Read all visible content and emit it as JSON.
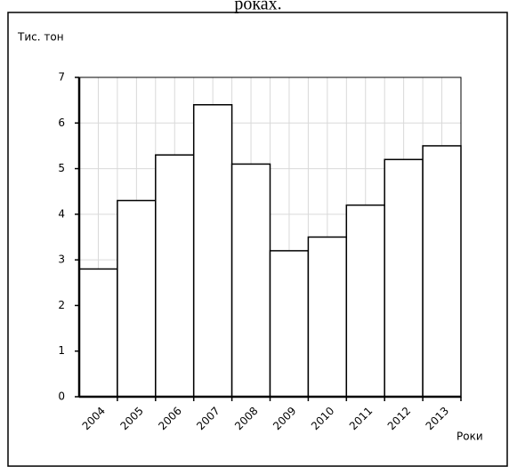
{
  "chart_data": {
    "type": "bar",
    "title": "роках.",
    "y_label": "Тис. тон",
    "x_label": "Роки",
    "categories": [
      "2004",
      "2005",
      "2006",
      "2007",
      "2008",
      "2009",
      "2010",
      "2011",
      "2012",
      "2013"
    ],
    "values": [
      2.8,
      4.3,
      5.3,
      6.4,
      5.1,
      3.2,
      3.5,
      4.2,
      5.2,
      5.5
    ],
    "color": "#ffffff",
    "ylim": [
      0,
      7
    ],
    "yticks": [
      0,
      1,
      2,
      3,
      4,
      5,
      6,
      7
    ],
    "grid": true
  }
}
